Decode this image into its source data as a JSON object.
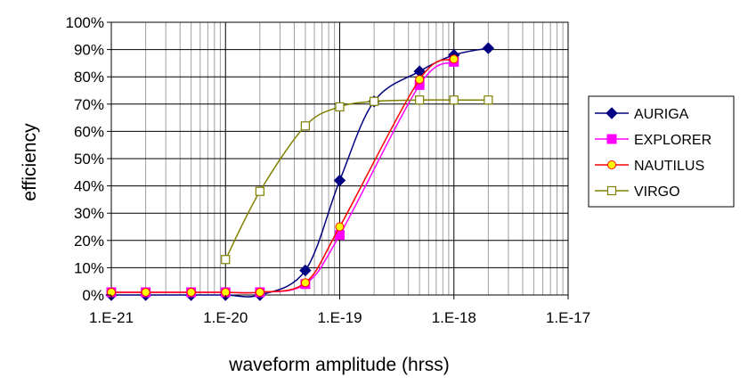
{
  "chart_data": {
    "type": "line",
    "xlabel": "waveform amplitude (hrss)",
    "ylabel": "efficiency",
    "xscale": "log",
    "xlim": [
      1e-21,
      1e-17
    ],
    "ylim": [
      0,
      100
    ],
    "x_tick_labels": [
      "1.E-21",
      "1.E-20",
      "1.E-19",
      "1.E-18",
      "1.E-17"
    ],
    "y_tick_labels": [
      "0%",
      "10%",
      "20%",
      "30%",
      "40%",
      "50%",
      "60%",
      "70%",
      "80%",
      "90%",
      "100%"
    ],
    "grid": "major and minor",
    "legend_position": "right",
    "series": [
      {
        "name": "AURIGA",
        "color": "#000080",
        "marker": "diamond",
        "points": [
          [
            1e-21,
            0
          ],
          [
            2e-21,
            0
          ],
          [
            5e-21,
            0
          ],
          [
            1e-20,
            0
          ],
          [
            2e-20,
            0
          ],
          [
            5e-20,
            9
          ],
          [
            1e-19,
            42
          ],
          [
            2e-19,
            71
          ],
          [
            5e-19,
            82
          ],
          [
            1e-18,
            88
          ],
          [
            2e-18,
            90.5
          ]
        ]
      },
      {
        "name": "EXPLORER",
        "color": "#ff00ff",
        "marker": "square",
        "points": [
          [
            1e-21,
            1
          ],
          [
            2e-21,
            1
          ],
          [
            5e-21,
            1
          ],
          [
            1e-20,
            1
          ],
          [
            2e-20,
            1
          ],
          [
            5e-20,
            4
          ],
          [
            1e-19,
            22
          ],
          [
            5e-19,
            77
          ],
          [
            1e-18,
            85.5
          ]
        ]
      },
      {
        "name": "NAUTILUS",
        "color": "#ff0000",
        "marker": "circle",
        "marker_fill": "#ffff00",
        "points": [
          [
            1e-21,
            1
          ],
          [
            2e-21,
            1
          ],
          [
            5e-21,
            1
          ],
          [
            1e-20,
            1
          ],
          [
            2e-20,
            1
          ],
          [
            5e-20,
            4.5
          ],
          [
            1e-19,
            25
          ],
          [
            5e-19,
            79
          ],
          [
            1e-18,
            86.5
          ]
        ]
      },
      {
        "name": "VIRGO",
        "color": "#808000",
        "marker": "open-square",
        "points": [
          [
            1e-20,
            13
          ],
          [
            2e-20,
            38
          ],
          [
            5e-20,
            62
          ],
          [
            1e-19,
            69
          ],
          [
            2e-19,
            71
          ],
          [
            5e-19,
            71.5
          ],
          [
            1e-18,
            71.5
          ],
          [
            2e-18,
            71.5
          ]
        ]
      }
    ]
  }
}
